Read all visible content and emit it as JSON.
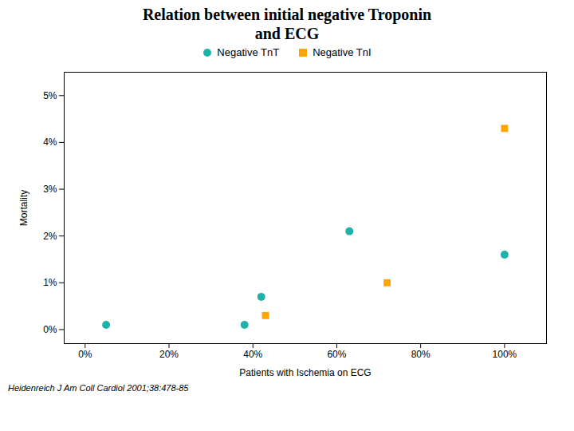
{
  "chart_data": {
    "type": "scatter",
    "title": "Relation between  initial negative Troponin",
    "subtitle": "and  ECG",
    "xlabel": "Patients with Ischemia on ECG",
    "ylabel": "Mortality",
    "annotations": [
      "Heidenreich J Am Coll Cardiol 2001;38:478-85"
    ],
    "series": [
      {
        "name": "Negative TnT",
        "color": "#20B2AA",
        "marker": "circle",
        "x": [
          0.05,
          0.38,
          0.42,
          0.63,
          1.0
        ],
        "values": [
          0.001,
          0.001,
          0.007,
          0.021,
          0.016
        ]
      },
      {
        "name": "Negative TnI",
        "color": "#FFA500",
        "marker": "square",
        "x": [
          0.43,
          0.72,
          1.0
        ],
        "values": [
          0.003,
          0.01,
          0.043
        ]
      }
    ],
    "xlim": [
      -0.05,
      1.1
    ],
    "ylim": [
      -0.003,
      0.055
    ],
    "xticks": [
      {
        "value": 0.0,
        "label": "0%"
      },
      {
        "value": 0.2,
        "label": "20%"
      },
      {
        "value": 0.4,
        "label": "40%"
      },
      {
        "value": 0.6,
        "label": "60%"
      },
      {
        "value": 0.8,
        "label": "80%"
      },
      {
        "value": 1.0,
        "label": "100%"
      }
    ],
    "yticks": [
      {
        "value": 0.0,
        "label": "0%"
      },
      {
        "value": 0.01,
        "label": "1%"
      },
      {
        "value": 0.02,
        "label": "2%"
      },
      {
        "value": 0.03,
        "label": "3%"
      },
      {
        "value": 0.04,
        "label": "4%"
      },
      {
        "value": 0.05,
        "label": "5%"
      }
    ],
    "grid": false,
    "legend": "top"
  }
}
